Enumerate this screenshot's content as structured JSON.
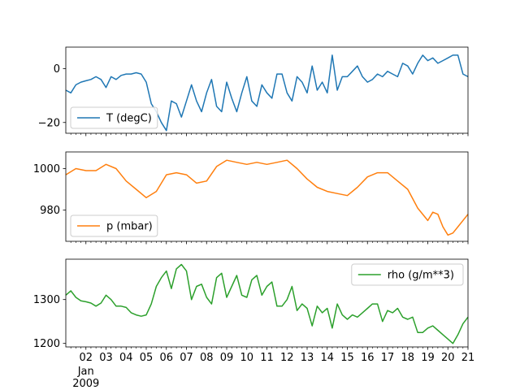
{
  "chart_data": [
    {
      "type": "line",
      "series": [
        {
          "name": "T (degC)",
          "color": "#1f77b4"
        }
      ],
      "x": [
        1.0,
        1.25,
        1.5,
        1.75,
        2.0,
        2.25,
        2.5,
        2.75,
        3.0,
        3.25,
        3.5,
        3.75,
        4.0,
        4.25,
        4.5,
        4.75,
        5.0,
        5.25,
        5.5,
        5.75,
        6.0,
        6.25,
        6.5,
        6.75,
        7.0,
        7.25,
        7.5,
        7.75,
        8.0,
        8.25,
        8.5,
        8.75,
        9.0,
        9.25,
        9.5,
        9.75,
        10.0,
        10.25,
        10.5,
        10.75,
        11.0,
        11.25,
        11.5,
        11.75,
        12.0,
        12.25,
        12.5,
        12.75,
        13.0,
        13.25,
        13.5,
        13.75,
        14.0,
        14.25,
        14.5,
        14.75,
        15.0,
        15.25,
        15.5,
        15.75,
        16.0,
        16.25,
        16.5,
        16.75,
        17.0,
        17.25,
        17.5,
        17.75,
        18.0,
        18.25,
        18.5,
        18.75,
        19.0,
        19.25,
        19.5,
        19.75,
        20.0,
        20.25,
        20.5,
        20.75,
        21.0
      ],
      "values": [
        -8,
        -9,
        -6,
        -5,
        -4.5,
        -4,
        -3,
        -4,
        -7,
        -3,
        -4,
        -2.5,
        -2,
        -2,
        -1.5,
        -2,
        -5,
        -13,
        -16,
        -20,
        -23,
        -12,
        -13,
        -18,
        -12,
        -6,
        -12,
        -16,
        -9,
        -4,
        -14,
        -16,
        -5,
        -11,
        -16,
        -9,
        -3,
        -12,
        -14,
        -6,
        -9,
        -11,
        -2,
        -2,
        -9,
        -12,
        -3,
        -5,
        -9,
        1,
        -8,
        -5,
        -9,
        5,
        -8,
        -3,
        -3,
        -1,
        1,
        -3,
        -5,
        -4,
        -2,
        -3,
        -1,
        -2,
        -3,
        2,
        1,
        -2,
        2,
        5,
        3,
        4,
        2,
        3,
        4,
        5,
        5,
        -2,
        -3
      ],
      "ylim": [
        -24,
        8
      ],
      "yticks": [
        0,
        -20
      ],
      "legend": "lower-left",
      "grid": false
    },
    {
      "type": "line",
      "series": [
        {
          "name": "p (mbar)",
          "color": "#ff7f0e"
        }
      ],
      "x": [
        1.0,
        1.5,
        2.0,
        2.5,
        3.0,
        3.5,
        4.0,
        4.5,
        5.0,
        5.5,
        6.0,
        6.5,
        7.0,
        7.5,
        8.0,
        8.5,
        9.0,
        9.5,
        10.0,
        10.5,
        11.0,
        11.5,
        12.0,
        12.5,
        13.0,
        13.5,
        14.0,
        14.5,
        15.0,
        15.5,
        16.0,
        16.5,
        17.0,
        17.5,
        18.0,
        18.5,
        19.0,
        19.25,
        19.5,
        19.75,
        20.0,
        20.25,
        20.5,
        21.0
      ],
      "values": [
        997,
        1000,
        999,
        999,
        1002,
        1000,
        994,
        990,
        986,
        989,
        997,
        998,
        997,
        993,
        994,
        1001,
        1004,
        1003,
        1002,
        1003,
        1002,
        1003,
        1004,
        1000,
        995,
        991,
        989,
        988,
        987,
        991,
        996,
        998,
        998,
        994,
        990,
        981,
        975,
        979,
        978,
        972,
        968,
        969,
        972,
        978
      ],
      "ylim": [
        965,
        1008
      ],
      "yticks": [
        1000,
        980
      ],
      "legend": "lower-left",
      "grid": false
    },
    {
      "type": "line",
      "series": [
        {
          "name": "rho (g/m**3)",
          "color": "#2ca02c"
        }
      ],
      "x": [
        1.0,
        1.25,
        1.5,
        1.75,
        2.0,
        2.25,
        2.5,
        2.75,
        3.0,
        3.25,
        3.5,
        3.75,
        4.0,
        4.25,
        4.5,
        4.75,
        5.0,
        5.25,
        5.5,
        5.75,
        6.0,
        6.25,
        6.5,
        6.75,
        7.0,
        7.25,
        7.5,
        7.75,
        8.0,
        8.25,
        8.5,
        8.75,
        9.0,
        9.25,
        9.5,
        9.75,
        10.0,
        10.25,
        10.5,
        10.75,
        11.0,
        11.25,
        11.5,
        11.75,
        12.0,
        12.25,
        12.5,
        12.75,
        13.0,
        13.25,
        13.5,
        13.75,
        14.0,
        14.25,
        14.5,
        14.75,
        15.0,
        15.25,
        15.5,
        15.75,
        16.0,
        16.25,
        16.5,
        16.75,
        17.0,
        17.25,
        17.5,
        17.75,
        18.0,
        18.25,
        18.5,
        18.75,
        19.0,
        19.25,
        19.5,
        19.75,
        20.0,
        20.25,
        20.5,
        20.75,
        21.0
      ],
      "values": [
        1310,
        1320,
        1305,
        1297,
        1295,
        1292,
        1285,
        1292,
        1310,
        1300,
        1285,
        1285,
        1282,
        1270,
        1265,
        1262,
        1265,
        1290,
        1330,
        1350,
        1365,
        1325,
        1370,
        1380,
        1365,
        1300,
        1330,
        1335,
        1305,
        1290,
        1350,
        1360,
        1305,
        1330,
        1355,
        1310,
        1305,
        1345,
        1355,
        1310,
        1330,
        1340,
        1285,
        1285,
        1300,
        1330,
        1275,
        1290,
        1280,
        1240,
        1285,
        1270,
        1280,
        1235,
        1290,
        1265,
        1255,
        1265,
        1260,
        1270,
        1280,
        1290,
        1290,
        1250,
        1275,
        1270,
        1280,
        1260,
        1255,
        1260,
        1225,
        1225,
        1235,
        1240,
        1230,
        1220,
        1210,
        1200,
        1220,
        1245,
        1260
      ],
      "ylim": [
        1192,
        1392
      ],
      "yticks": [
        1300,
        1200
      ],
      "legend": "upper-right",
      "grid": false
    }
  ],
  "xaxis": {
    "day_labels": [
      "02",
      "03",
      "04",
      "05",
      "06",
      "07",
      "08",
      "09",
      "10",
      "11",
      "12",
      "13",
      "14",
      "15",
      "16",
      "17",
      "18",
      "19",
      "20",
      "21"
    ],
    "month_label": "Jan",
    "year_label": "2009"
  }
}
